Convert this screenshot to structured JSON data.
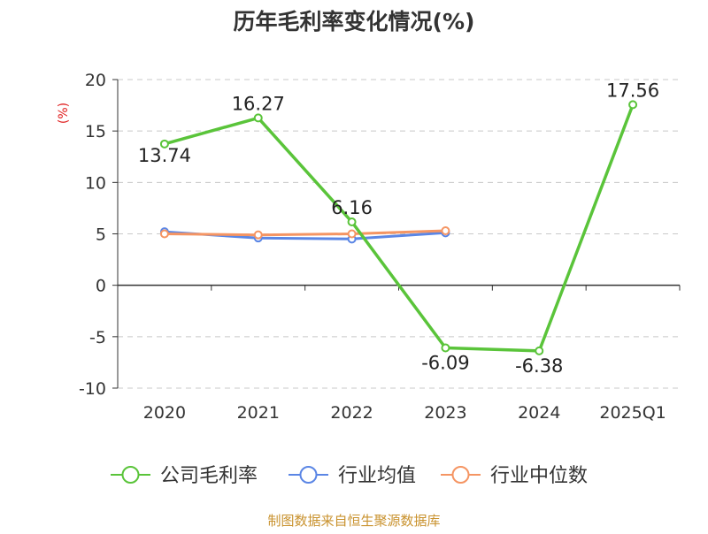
{
  "chart_data": {
    "type": "line",
    "title": "历年毛利率变化情况(%)",
    "ylabel": "(%)",
    "xlabel": "",
    "categories": [
      "2020",
      "2021",
      "2022",
      "2023",
      "2024",
      "2025Q1"
    ],
    "ylim": [
      -10,
      20
    ],
    "yticks": [
      20,
      15,
      10,
      5,
      0,
      -5,
      -10
    ],
    "grid": true,
    "legend_position": "bottom",
    "series": [
      {
        "name": "公司毛利率",
        "color": "#5ac43a",
        "values": [
          13.74,
          16.27,
          6.16,
          -6.09,
          -6.38,
          17.56
        ],
        "labels": [
          "13.74",
          "16.27",
          "6.16",
          "-6.09",
          "-6.38",
          "17.56"
        ]
      },
      {
        "name": "行业均值",
        "color": "#5b86e5",
        "values": [
          5.2,
          4.6,
          4.5,
          5.1,
          null,
          null
        ]
      },
      {
        "name": "行业中位数",
        "color": "#f59563",
        "values": [
          5.0,
          4.9,
          5.0,
          5.3,
          null,
          null
        ]
      }
    ]
  },
  "footer": {
    "source": "制图数据来自恒生聚源数据库",
    "color": "#c9922e"
  },
  "ylabel_color": "#e02020"
}
